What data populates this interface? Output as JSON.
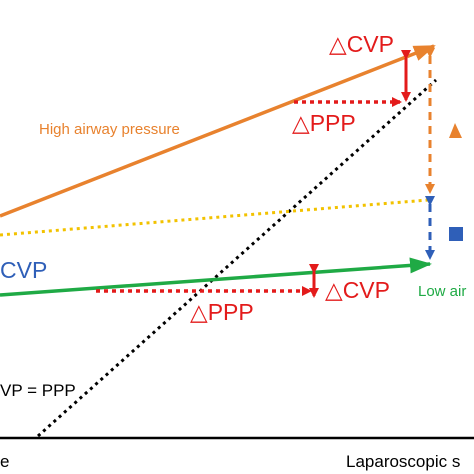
{
  "colors": {
    "high": "#E8822E",
    "low": "#1FAA45",
    "yellow": "#F2C200",
    "blue": "#2F5FB8",
    "red": "#E31B1B",
    "black": "#000000"
  },
  "labels": {
    "delta_cvp_top": "△CVP",
    "delta_ppp_top": "△PPP",
    "high_airway_pressure": "High airway pressure",
    "cvp_left": "CVP",
    "delta_ppp_bottom": "△PPP",
    "delta_cvp_bottom": "△CVP",
    "low_airway": "Low air",
    "cvp_equals_ppp": "VP = PPP",
    "x_axis_left": "e",
    "x_axis_right": "Laparoscopic s"
  },
  "icons": {
    "right_orange": "orange-triangle-icon",
    "right_blue": "blue-square-icon"
  }
}
